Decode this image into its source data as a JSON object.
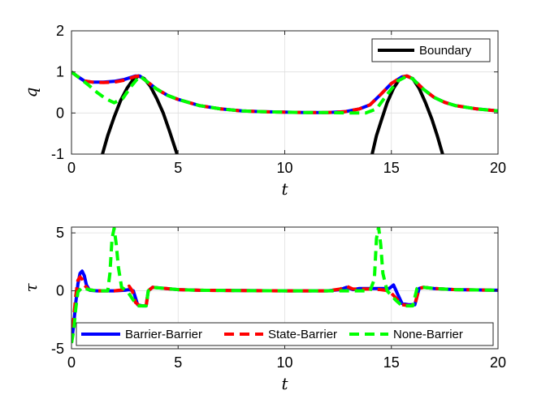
{
  "chart_data": [
    {
      "type": "line",
      "xlabel": "t",
      "ylabel": "q",
      "xlim": [
        0,
        20
      ],
      "ylim": [
        -1,
        2
      ],
      "xticks": [
        "0",
        "5",
        "10",
        "15",
        "20"
      ],
      "yticks": [
        "-1",
        "0",
        "1",
        "2"
      ],
      "grid": true,
      "legend_position": "top-right",
      "series": [
        {
          "name": "Boundary",
          "color": "#000000",
          "style": "solid",
          "segments": [
            [
              [
                1.45,
                -1.0
              ],
              [
                1.7,
                -0.55
              ],
              [
                2.0,
                -0.1
              ],
              [
                2.3,
                0.3
              ],
              [
                2.6,
                0.6
              ],
              [
                2.9,
                0.82
              ],
              [
                3.15,
                0.9
              ],
              [
                3.4,
                0.84
              ],
              [
                3.7,
                0.65
              ],
              [
                4.0,
                0.35
              ],
              [
                4.3,
                0.0
              ],
              [
                4.6,
                -0.45
              ],
              [
                4.95,
                -1.0
              ]
            ],
            [
              [
                14.1,
                -1.0
              ],
              [
                14.3,
                -0.55
              ],
              [
                14.55,
                -0.15
              ],
              [
                14.8,
                0.25
              ],
              [
                15.1,
                0.6
              ],
              [
                15.4,
                0.84
              ],
              [
                15.7,
                0.9
              ],
              [
                16.0,
                0.84
              ],
              [
                16.3,
                0.6
              ],
              [
                16.6,
                0.25
              ],
              [
                16.9,
                -0.15
              ],
              [
                17.15,
                -0.55
              ],
              [
                17.4,
                -1.0
              ]
            ]
          ]
        },
        {
          "name": "Barrier-Barrier",
          "color": "#0000ff",
          "style": "solid",
          "points": [
            [
              0.0,
              1.0
            ],
            [
              0.25,
              0.9
            ],
            [
              0.6,
              0.78
            ],
            [
              1.0,
              0.75
            ],
            [
              1.5,
              0.75
            ],
            [
              2.0,
              0.77
            ],
            [
              2.5,
              0.82
            ],
            [
              3.0,
              0.9
            ],
            [
              3.2,
              0.9
            ],
            [
              3.6,
              0.74
            ],
            [
              4.0,
              0.58
            ],
            [
              4.5,
              0.43
            ],
            [
              5.0,
              0.33
            ],
            [
              6.0,
              0.18
            ],
            [
              7.0,
              0.1
            ],
            [
              8.0,
              0.05
            ],
            [
              9.0,
              0.03
            ],
            [
              10.0,
              0.02
            ],
            [
              11.0,
              0.01
            ],
            [
              12.0,
              0.01
            ],
            [
              12.8,
              0.03
            ],
            [
              13.5,
              0.1
            ],
            [
              14.0,
              0.2
            ],
            [
              14.5,
              0.45
            ],
            [
              15.0,
              0.72
            ],
            [
              15.5,
              0.88
            ],
            [
              15.75,
              0.9
            ],
            [
              16.0,
              0.83
            ],
            [
              16.5,
              0.58
            ],
            [
              17.0,
              0.38
            ],
            [
              17.5,
              0.26
            ],
            [
              18.0,
              0.18
            ],
            [
              19.0,
              0.1
            ],
            [
              20.0,
              0.05
            ]
          ]
        },
        {
          "name": "State-Barrier",
          "color": "#ff0000",
          "style": "dashed",
          "points": [
            [
              0.0,
              1.0
            ],
            [
              0.25,
              0.9
            ],
            [
              0.6,
              0.78
            ],
            [
              1.0,
              0.75
            ],
            [
              1.5,
              0.74
            ],
            [
              2.0,
              0.75
            ],
            [
              2.5,
              0.8
            ],
            [
              3.0,
              0.89
            ],
            [
              3.2,
              0.9
            ],
            [
              3.6,
              0.74
            ],
            [
              4.0,
              0.58
            ],
            [
              4.5,
              0.43
            ],
            [
              5.0,
              0.33
            ],
            [
              6.0,
              0.18
            ],
            [
              7.0,
              0.1
            ],
            [
              8.0,
              0.05
            ],
            [
              9.0,
              0.03
            ],
            [
              10.0,
              0.02
            ],
            [
              11.0,
              0.01
            ],
            [
              12.0,
              0.01
            ],
            [
              12.8,
              0.03
            ],
            [
              13.5,
              0.1
            ],
            [
              14.0,
              0.2
            ],
            [
              14.5,
              0.45
            ],
            [
              15.0,
              0.72
            ],
            [
              15.5,
              0.88
            ],
            [
              15.75,
              0.9
            ],
            [
              16.0,
              0.83
            ],
            [
              16.5,
              0.58
            ],
            [
              17.0,
              0.38
            ],
            [
              17.5,
              0.26
            ],
            [
              18.0,
              0.18
            ],
            [
              19.0,
              0.1
            ],
            [
              20.0,
              0.05
            ]
          ]
        },
        {
          "name": "None-Barrier",
          "color": "#00ff00",
          "style": "dashed",
          "points": [
            [
              0.0,
              1.0
            ],
            [
              0.3,
              0.88
            ],
            [
              0.8,
              0.68
            ],
            [
              1.2,
              0.5
            ],
            [
              1.6,
              0.35
            ],
            [
              2.0,
              0.25
            ],
            [
              2.4,
              0.35
            ],
            [
              2.8,
              0.65
            ],
            [
              3.2,
              0.9
            ],
            [
              3.6,
              0.74
            ],
            [
              4.0,
              0.58
            ],
            [
              4.5,
              0.43
            ],
            [
              5.0,
              0.33
            ],
            [
              6.0,
              0.18
            ],
            [
              7.0,
              0.1
            ],
            [
              8.0,
              0.05
            ],
            [
              9.0,
              0.03
            ],
            [
              10.0,
              0.02
            ],
            [
              11.0,
              0.01
            ],
            [
              12.0,
              0.01
            ],
            [
              13.0,
              0.0
            ],
            [
              13.8,
              0.0
            ],
            [
              14.3,
              0.1
            ],
            [
              14.8,
              0.45
            ],
            [
              15.3,
              0.78
            ],
            [
              15.75,
              0.9
            ],
            [
              16.0,
              0.83
            ],
            [
              16.5,
              0.58
            ],
            [
              17.0,
              0.38
            ],
            [
              17.5,
              0.26
            ],
            [
              18.0,
              0.18
            ],
            [
              19.0,
              0.1
            ],
            [
              20.0,
              0.05
            ]
          ]
        }
      ],
      "legend": [
        "Boundary"
      ]
    },
    {
      "type": "line",
      "xlabel": "t",
      "ylabel": "τ",
      "xlim": [
        0,
        20
      ],
      "ylim": [
        -5,
        5.5
      ],
      "xticks": [
        "0",
        "5",
        "10",
        "15",
        "20"
      ],
      "yticks": [
        "-5",
        "0",
        "5"
      ],
      "grid": true,
      "legend_position": "bottom",
      "series": [
        {
          "name": "Barrier-Barrier",
          "color": "#0000ff",
          "style": "solid",
          "points": [
            [
              0.0,
              -4.5
            ],
            [
              0.1,
              -3.0
            ],
            [
              0.2,
              -1.0
            ],
            [
              0.3,
              0.6
            ],
            [
              0.4,
              1.5
            ],
            [
              0.5,
              1.7
            ],
            [
              0.6,
              1.3
            ],
            [
              0.7,
              0.5
            ],
            [
              0.85,
              0.05
            ],
            [
              1.2,
              0.0
            ],
            [
              2.0,
              0.0
            ],
            [
              2.5,
              0.05
            ],
            [
              2.7,
              0.1
            ],
            [
              2.9,
              0.0
            ],
            [
              3.1,
              -1.2
            ],
            [
              3.3,
              -1.3
            ],
            [
              3.5,
              -1.3
            ],
            [
              3.6,
              0.0
            ],
            [
              3.8,
              0.3
            ],
            [
              5.0,
              0.1
            ],
            [
              6.0,
              0.05
            ],
            [
              8.0,
              0.02
            ],
            [
              10.0,
              0.0
            ],
            [
              12.0,
              0.0
            ],
            [
              12.6,
              0.1
            ],
            [
              12.9,
              0.3
            ],
            [
              13.2,
              0.1
            ],
            [
              13.5,
              0.2
            ],
            [
              14.0,
              0.2
            ],
            [
              14.5,
              0.2
            ],
            [
              14.9,
              0.2
            ],
            [
              15.1,
              0.5
            ],
            [
              15.3,
              -0.3
            ],
            [
              15.5,
              -1.1
            ],
            [
              15.8,
              -1.2
            ],
            [
              16.1,
              -1.2
            ],
            [
              16.3,
              0.2
            ],
            [
              16.5,
              0.3
            ],
            [
              17.0,
              0.2
            ],
            [
              18.0,
              0.1
            ],
            [
              20.0,
              0.05
            ]
          ]
        },
        {
          "name": "State-Barrier",
          "color": "#ff0000",
          "style": "dashed",
          "points": [
            [
              0.0,
              -4.5
            ],
            [
              0.1,
              -2.5
            ],
            [
              0.2,
              -0.4
            ],
            [
              0.3,
              0.9
            ],
            [
              0.4,
              1.2
            ],
            [
              0.5,
              1.0
            ],
            [
              0.6,
              0.5
            ],
            [
              0.8,
              0.1
            ],
            [
              1.2,
              0.0
            ],
            [
              2.0,
              0.0
            ],
            [
              2.5,
              0.1
            ],
            [
              2.7,
              0.4
            ],
            [
              2.85,
              0.0
            ],
            [
              3.0,
              -1.0
            ],
            [
              3.2,
              -1.3
            ],
            [
              3.5,
              -1.3
            ],
            [
              3.6,
              0.0
            ],
            [
              3.8,
              0.3
            ],
            [
              5.0,
              0.1
            ],
            [
              6.0,
              0.05
            ],
            [
              8.0,
              0.02
            ],
            [
              10.0,
              0.0
            ],
            [
              12.0,
              0.0
            ],
            [
              12.6,
              0.15
            ],
            [
              12.9,
              0.4
            ],
            [
              13.2,
              0.15
            ],
            [
              14.0,
              0.15
            ],
            [
              14.5,
              0.1
            ],
            [
              14.9,
              0.0
            ],
            [
              15.2,
              -0.6
            ],
            [
              15.5,
              -1.2
            ],
            [
              15.9,
              -1.3
            ],
            [
              16.1,
              -1.2
            ],
            [
              16.3,
              0.2
            ],
            [
              16.5,
              0.3
            ],
            [
              17.0,
              0.2
            ],
            [
              18.0,
              0.1
            ],
            [
              20.0,
              0.05
            ]
          ]
        },
        {
          "name": "None-Barrier",
          "color": "#00ff00",
          "style": "dashed",
          "points": [
            [
              0.0,
              -4.5
            ],
            [
              0.1,
              -3.5
            ],
            [
              0.2,
              -1.5
            ],
            [
              0.3,
              -0.1
            ],
            [
              0.5,
              0.3
            ],
            [
              0.8,
              0.1
            ],
            [
              1.2,
              0.0
            ],
            [
              1.7,
              0.0
            ],
            [
              1.8,
              1.5
            ],
            [
              1.9,
              4.5
            ],
            [
              2.0,
              5.4
            ],
            [
              2.1,
              4.0
            ],
            [
              2.2,
              2.0
            ],
            [
              2.35,
              0.3
            ],
            [
              2.6,
              0.0
            ],
            [
              2.9,
              -0.8
            ],
            [
              3.1,
              -1.3
            ],
            [
              3.5,
              -1.3
            ],
            [
              3.6,
              0.0
            ],
            [
              3.8,
              0.3
            ],
            [
              5.0,
              0.1
            ],
            [
              6.0,
              0.05
            ],
            [
              8.0,
              0.02
            ],
            [
              10.0,
              0.0
            ],
            [
              12.0,
              0.0
            ],
            [
              13.0,
              0.0
            ],
            [
              14.0,
              0.0
            ],
            [
              14.2,
              1.0
            ],
            [
              14.3,
              4.5
            ],
            [
              14.4,
              5.5
            ],
            [
              14.5,
              4.0
            ],
            [
              14.6,
              1.5
            ],
            [
              14.8,
              0.0
            ],
            [
              15.2,
              -0.8
            ],
            [
              15.5,
              -1.3
            ],
            [
              16.0,
              -1.3
            ],
            [
              16.2,
              0.2
            ],
            [
              16.5,
              0.3
            ],
            [
              17.0,
              0.2
            ],
            [
              18.0,
              0.1
            ],
            [
              20.0,
              0.05
            ]
          ]
        }
      ],
      "legend": [
        "Barrier-Barrier",
        "State-Barrier",
        "None-Barrier"
      ]
    }
  ]
}
